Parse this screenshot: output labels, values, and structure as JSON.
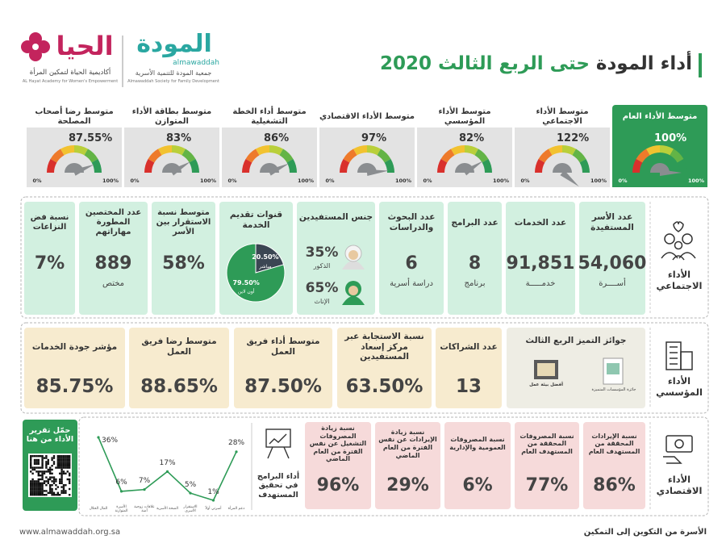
{
  "header": {
    "title_main": "أداء المودة",
    "title_rest": "حتى الربع الثالث 2020"
  },
  "logos": {
    "mawaddah": {
      "name": "المودة",
      "latin": "almawaddah",
      "desc_ar": "جمعية المودة للتنمية الأسرية",
      "desc_en": "Almawaddah Society for Family Development"
    },
    "hayat": {
      "name": "الحيا",
      "desc_ar": "أكاديمية الحياة لتمكين المرأة",
      "desc_en": "AL Hayat Academy for Women's Empowerment"
    }
  },
  "gauges": {
    "min": {
      "value": 0,
      "label": "0%"
    },
    "max": {
      "value": 100,
      "label": "100%"
    },
    "items": [
      {
        "label": "متوسط الأداء العام",
        "value": 100,
        "value_label": "100%"
      },
      {
        "label": "متوسط الأداء الاجتماعي",
        "value": 122,
        "value_label": "122%"
      },
      {
        "label": "متوسط الأداء المؤسسي",
        "value": 82,
        "value_label": "82%"
      },
      {
        "label": "متوسط الأداء الاقتصادي",
        "value": 97,
        "value_label": "97%"
      },
      {
        "label": "متوسط أداء الخطة التشغيلية",
        "value": 86,
        "value_label": "86%"
      },
      {
        "label": "متوسط بطاقة الأداء المتوازن",
        "value": 83,
        "value_label": "83%"
      },
      {
        "label": "متوسط رضا أصحاب المصلحة",
        "value": 87.55,
        "value_label": "87.55%"
      }
    ]
  },
  "social": {
    "label": "الأداء الاجتماعي",
    "cards_right": [
      {
        "title": "عدد الأسر المستفيدة",
        "value": "54,060",
        "unit": "أســــرة"
      },
      {
        "title": "عدد الخدمات",
        "value": "91,851",
        "unit": "خدمـــــة"
      },
      {
        "title": "عدد البرامج",
        "value": "8",
        "unit": "برنامج"
      },
      {
        "title": "عدد البحوث والدراسات",
        "value": "6",
        "unit": "دراسة أسرية"
      }
    ],
    "gender": {
      "title": "جنس المستفيدين",
      "items": [
        {
          "percent": "35%",
          "label": "الذكور"
        },
        {
          "percent": "65%",
          "label": "الإناث"
        }
      ]
    },
    "channels": {
      "title": "قنوات تقديم الخدمة",
      "slices": [
        {
          "label": "مباشر",
          "value": 20.5,
          "value_label": "20.50%",
          "color": "#3b4653"
        },
        {
          "label": "أون لاين",
          "value": 79.5,
          "value_label": "79.50%",
          "color": "#2e9b57"
        }
      ]
    },
    "cards_left": [
      {
        "title": "متوسط نسبة الاستقرار بين الأسر",
        "value": "58%"
      },
      {
        "title": "عدد المختصين المطورة مهاراتهم",
        "value": "889",
        "unit": "مختص"
      },
      {
        "title": "نسبة فض النزاعات",
        "value": "7%"
      }
    ]
  },
  "institutional": {
    "label": "الأداء المؤسسي",
    "awards": {
      "title": "جوائز التميز الربع الثالث",
      "items": [
        "جائزة المؤسسات المتميزة",
        "أفضل بيئة عمل"
      ]
    },
    "cards": [
      {
        "title": "عدد الشراكات",
        "value": "13"
      },
      {
        "title": "نسبة الاستجابة عبر مركز إسعاد المستفيدين",
        "value": "63.50%"
      },
      {
        "title": "متوسط أداء فريق العمل",
        "value": "87.50%"
      },
      {
        "title": "متوسط رضا فريق العمل",
        "value": "88.65%"
      },
      {
        "title": "مؤشر جودة الخدمات",
        "value": "85.75%"
      }
    ]
  },
  "economic": {
    "label": "الأداء الاقتصادي",
    "cards": [
      {
        "title": "نسبة الإيرادات المحققة من المستهدف العام",
        "value": "86%"
      },
      {
        "title": "نسبة المصروفات المحققة من المستهدف العام",
        "value": "77%"
      },
      {
        "title": "نسبة المصروفات العمومية والإدارية",
        "value": "6%"
      },
      {
        "title": "نسبة زيادة الإيرادات عن نفس الفترة من العام الماضي",
        "value": "29%"
      },
      {
        "title": "نسبة زيادة المصروفات التشغيل عن نفس الفترة من العام الماضي",
        "value": "96%"
      }
    ]
  },
  "programs": {
    "type": "line",
    "title": "أداء البرامج في تحقيق المستهدف",
    "color": "#2e9b57",
    "categories": [
      "المال الحلال",
      "الأسرة المتوازنة",
      "علاقات زوجية آمنة",
      "الصحة الأسرية",
      "الاستقرار الأسري",
      "أسرتي أولاً",
      "دعم المرأة"
    ],
    "values": [
      36,
      6,
      7,
      17,
      5,
      1,
      28
    ],
    "value_labels": [
      "36%",
      "6%",
      "7%",
      "17%",
      "5%",
      "1%",
      "28%"
    ]
  },
  "download": {
    "text": "حمّل تقرير الأداء من هنا"
  },
  "footer": {
    "url": "www.almawaddah.org.sa",
    "slogan": "الأسرة من التكوين إلى التمكين"
  }
}
